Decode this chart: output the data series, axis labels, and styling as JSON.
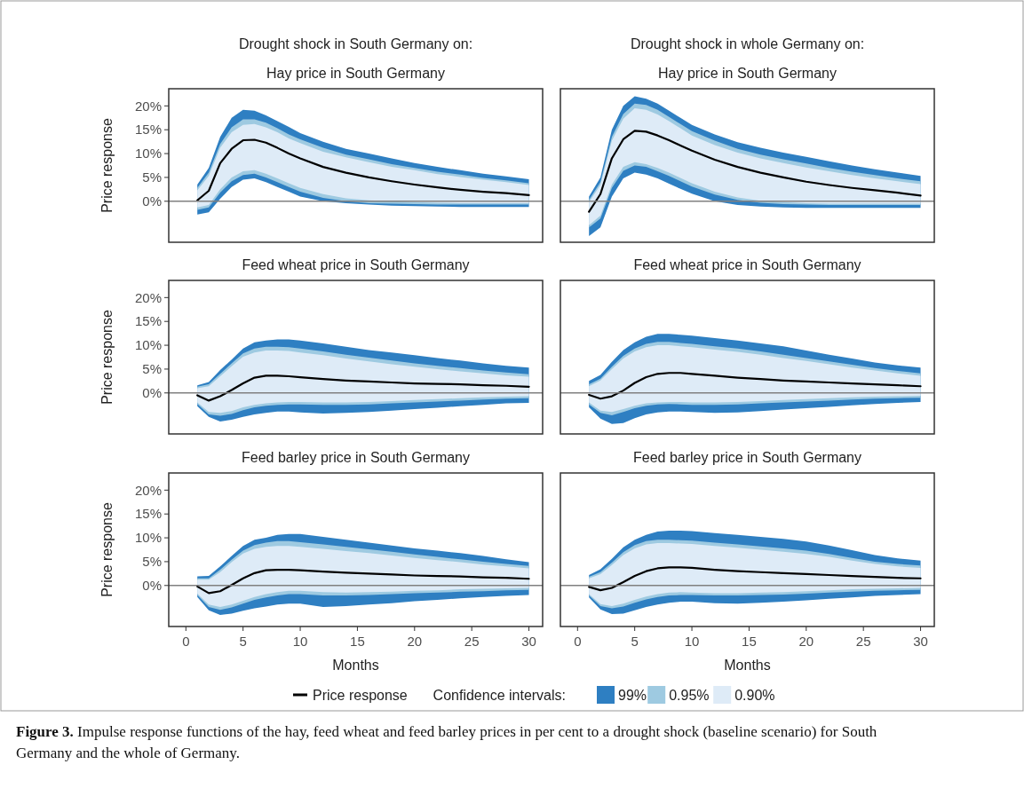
{
  "chart_data": [
    {
      "type": "line",
      "title": "Drought shock in South Germany on:",
      "subtitle": "Hay price in South Germany",
      "ylabel": "Price response",
      "xlim": [
        -1.5,
        31.2
      ],
      "ylim": [
        -8.6,
        23.6
      ],
      "yticks": [
        {
          "value": 0,
          "label": "0%"
        },
        {
          "value": 5,
          "label": "5%"
        },
        {
          "value": 10,
          "label": "10%"
        },
        {
          "value": 15,
          "label": "15%"
        },
        {
          "value": 20,
          "label": "20%"
        }
      ],
      "tick_labels": "y",
      "legend": false,
      "ref_lines": [
        {
          "axis": "y",
          "value": 0,
          "color": "#808080"
        }
      ],
      "x": [
        1,
        2,
        3,
        4,
        5,
        6,
        7,
        8,
        9,
        10,
        12,
        14,
        16,
        18,
        20,
        22,
        24,
        26,
        28,
        30
      ],
      "series": [
        {
          "color": "#2e7fc2",
          "values": [
            null,
            null,
            null,
            null,
            null,
            null,
            null,
            null,
            null,
            null,
            null,
            null,
            null,
            null,
            null,
            null,
            null,
            null,
            null,
            null
          ],
          "upper": [
            3.5,
            7,
            13.5,
            17.5,
            19.2,
            19,
            18,
            16.8,
            15.6,
            14.3,
            12.5,
            11,
            10,
            9,
            8,
            7.2,
            6.5,
            5.8,
            5.2,
            4.6
          ],
          "lower": [
            -2.8,
            -2.3,
            0.5,
            3,
            4.5,
            4.8,
            4,
            3,
            2,
            1,
            0,
            -0.4,
            -0.7,
            -0.9,
            -1,
            -1.1,
            -1.2,
            -1.2,
            -1.2,
            -1.2
          ]
        },
        {
          "color": "#9ecae1",
          "values": [
            null,
            null,
            null,
            null,
            null,
            null,
            null,
            null,
            null,
            null,
            null,
            null,
            null,
            null,
            null,
            null,
            null,
            null,
            null,
            null
          ],
          "upper": [
            2.8,
            6,
            12,
            15.5,
            17.2,
            17.2,
            16.5,
            15.3,
            14,
            13,
            11.2,
            9.8,
            8.8,
            7.8,
            7,
            6.2,
            5.6,
            4.9,
            4.4,
            3.8
          ],
          "lower": [
            -1.8,
            -1.3,
            1.8,
            4.2,
            5.5,
            5.8,
            5,
            4,
            3,
            2,
            0.7,
            0,
            -0.4,
            -0.5,
            -0.6,
            -0.7,
            -0.7,
            -0.7,
            -0.7,
            -0.7
          ]
        },
        {
          "color": "#deebf7",
          "values": [
            null,
            null,
            null,
            null,
            null,
            null,
            null,
            null,
            null,
            null,
            null,
            null,
            null,
            null,
            null,
            null,
            null,
            null,
            null,
            null
          ],
          "upper": [
            2.3,
            5.3,
            11.2,
            14.5,
            16,
            16.2,
            15.5,
            14.5,
            13.2,
            12.2,
            10.4,
            9.2,
            8.2,
            7.2,
            6.5,
            5.7,
            5.1,
            4.5,
            4,
            3.4
          ],
          "lower": [
            -1.3,
            -0.8,
            2.5,
            5,
            6.3,
            6.5,
            5.8,
            4.8,
            3.8,
            2.8,
            1.5,
            0.6,
            0.2,
            0,
            -0.2,
            -0.3,
            -0.4,
            -0.4,
            -0.4,
            -0.4
          ]
        },
        {
          "color": "#000000",
          "values": [
            0.2,
            2.2,
            8,
            11,
            12.8,
            12.9,
            12.3,
            11.2,
            10,
            9,
            7.2,
            6,
            5,
            4.2,
            3.5,
            2.9,
            2.4,
            2,
            1.7,
            1.3
          ]
        }
      ]
    },
    {
      "type": "line",
      "title": "Drought shock in whole Germany on:",
      "subtitle": "Hay price in South Germany",
      "xlim": [
        -1.5,
        31.2
      ],
      "ylim": [
        -8.6,
        23.6
      ],
      "tick_labels": false,
      "legend": false,
      "ref_lines": [
        {
          "axis": "y",
          "value": 0,
          "color": "#808080"
        }
      ],
      "x": [
        1,
        2,
        3,
        4,
        5,
        6,
        7,
        8,
        9,
        10,
        12,
        14,
        16,
        18,
        20,
        22,
        24,
        26,
        28,
        30
      ],
      "series": [
        {
          "color": "#2e7fc2",
          "values": [
            null,
            null,
            null,
            null,
            null,
            null,
            null,
            null,
            null,
            null,
            null,
            null,
            null,
            null,
            null,
            null,
            null,
            null,
            null,
            null
          ],
          "upper": [
            1,
            5,
            15,
            20,
            22,
            21.5,
            20.5,
            19,
            17.5,
            16,
            14,
            12.4,
            11.2,
            10.2,
            9.3,
            8.4,
            7.5,
            6.7,
            6,
            5.3
          ],
          "lower": [
            -7.3,
            -5.5,
            1,
            4.8,
            6,
            5.6,
            4.8,
            3.7,
            2.6,
            1.6,
            0,
            -0.8,
            -1.1,
            -1.3,
            -1.4,
            -1.4,
            -1.4,
            -1.4,
            -1.4,
            -1.4
          ]
        },
        {
          "color": "#9ecae1",
          "values": [
            null,
            null,
            null,
            null,
            null,
            null,
            null,
            null,
            null,
            null,
            null,
            null,
            null,
            null,
            null,
            null,
            null,
            null,
            null,
            null
          ],
          "upper": [
            0.3,
            4,
            13.5,
            18.3,
            20.5,
            20.2,
            19.2,
            17.7,
            16.2,
            14.7,
            12.7,
            11,
            9.8,
            8.8,
            7.9,
            7,
            6.2,
            5.5,
            4.8,
            4.2
          ],
          "lower": [
            -5.5,
            -3.6,
            2.8,
            6.4,
            7.5,
            7.2,
            6.3,
            5.3,
            4.2,
            3.1,
            1.4,
            0.3,
            -0.3,
            -0.6,
            -0.7,
            -0.8,
            -0.8,
            -0.8,
            -0.8,
            -0.8
          ]
        },
        {
          "color": "#deebf7",
          "values": [
            null,
            null,
            null,
            null,
            null,
            null,
            null,
            null,
            null,
            null,
            null,
            null,
            null,
            null,
            null,
            null,
            null,
            null,
            null,
            null
          ],
          "upper": [
            -0.2,
            3.4,
            12.7,
            17.3,
            19.5,
            19.2,
            18.2,
            16.8,
            15.3,
            13.8,
            11.8,
            10.2,
            9,
            8,
            7.1,
            6.3,
            5.5,
            4.8,
            4.2,
            3.6
          ],
          "lower": [
            -5,
            -3,
            3.5,
            7.2,
            8.2,
            7.8,
            7,
            6,
            4.9,
            3.8,
            2,
            0.8,
            0.1,
            -0.2,
            -0.4,
            -0.5,
            -0.5,
            -0.5,
            -0.5,
            -0.5
          ]
        },
        {
          "color": "#000000",
          "values": [
            -2.2,
            1.5,
            9,
            13,
            14.8,
            14.6,
            13.8,
            12.8,
            11.7,
            10.6,
            8.7,
            7.2,
            6,
            5,
            4.1,
            3.4,
            2.8,
            2.3,
            1.8,
            1.2
          ]
        }
      ]
    },
    {
      "type": "line",
      "title": "Feed wheat price in South Germany",
      "ylabel": "Price response",
      "xlim": [
        -1.5,
        31.2
      ],
      "ylim": [
        -8.6,
        23.6
      ],
      "yticks": [
        {
          "value": 0,
          "label": "0%"
        },
        {
          "value": 5,
          "label": "5%"
        },
        {
          "value": 10,
          "label": "10%"
        },
        {
          "value": 15,
          "label": "15%"
        },
        {
          "value": 20,
          "label": "20%"
        }
      ],
      "tick_labels": "y",
      "legend": false,
      "ref_lines": [
        {
          "axis": "y",
          "value": 0,
          "color": "#808080"
        }
      ],
      "x": [
        1,
        2,
        3,
        4,
        5,
        6,
        7,
        8,
        9,
        10,
        12,
        14,
        16,
        18,
        20,
        22,
        24,
        26,
        28,
        30
      ],
      "series": [
        {
          "color": "#2e7fc2",
          "values": [
            null,
            null,
            null,
            null,
            null,
            null,
            null,
            null,
            null,
            null,
            null,
            null,
            null,
            null,
            null,
            null,
            null,
            null,
            null,
            null
          ],
          "upper": [
            1.6,
            2.3,
            4.8,
            7,
            9.3,
            10.6,
            11,
            11.2,
            11.2,
            11,
            10.4,
            9.7,
            9,
            8.5,
            7.9,
            7.3,
            6.8,
            6.2,
            5.7,
            5.3
          ],
          "lower": [
            -2.8,
            -5,
            -6,
            -5.6,
            -5,
            -4.5,
            -4.2,
            -3.9,
            -3.9,
            -4.1,
            -4.3,
            -4.2,
            -4,
            -3.7,
            -3.4,
            -3.1,
            -2.8,
            -2.5,
            -2.2,
            -2.1
          ]
        },
        {
          "color": "#9ecae1",
          "values": [
            null,
            null,
            null,
            null,
            null,
            null,
            null,
            null,
            null,
            null,
            null,
            null,
            null,
            null,
            null,
            null,
            null,
            null,
            null,
            null
          ],
          "upper": [
            1.3,
            1.8,
            4,
            6.2,
            8.3,
            9.3,
            9.7,
            9.7,
            9.6,
            9.3,
            8.7,
            8,
            7.4,
            6.8,
            6.2,
            5.7,
            5.2,
            4.7,
            4.3,
            3.9
          ],
          "lower": [
            -2.3,
            -4.5,
            -4.8,
            -4.4,
            -3.6,
            -3,
            -2.7,
            -2.5,
            -2.4,
            -2.4,
            -2.5,
            -2.5,
            -2.4,
            -2.2,
            -2,
            -1.8,
            -1.6,
            -1.4,
            -1.2,
            -1.1
          ]
        },
        {
          "color": "#deebf7",
          "values": [
            null,
            null,
            null,
            null,
            null,
            null,
            null,
            null,
            null,
            null,
            null,
            null,
            null,
            null,
            null,
            null,
            null,
            null,
            null,
            null
          ],
          "upper": [
            1,
            1.4,
            3.5,
            5.6,
            7.6,
            8.5,
            8.9,
            8.9,
            8.8,
            8.5,
            7.9,
            7.2,
            6.6,
            6,
            5.5,
            5,
            4.5,
            4.1,
            3.7,
            3.4
          ],
          "lower": [
            -2,
            -4,
            -4.2,
            -3.8,
            -3,
            -2.5,
            -2.2,
            -2,
            -1.9,
            -1.9,
            -2,
            -2,
            -1.9,
            -1.7,
            -1.5,
            -1.3,
            -1.1,
            -0.9,
            -0.8,
            -0.7
          ]
        },
        {
          "color": "#000000",
          "values": [
            -0.5,
            -1.6,
            -0.7,
            0.6,
            2,
            3.2,
            3.6,
            3.6,
            3.5,
            3.3,
            2.9,
            2.6,
            2.4,
            2.2,
            2,
            1.9,
            1.8,
            1.6,
            1.5,
            1.3
          ]
        }
      ]
    },
    {
      "type": "line",
      "title": "Feed wheat price in South Germany",
      "xlim": [
        -1.5,
        31.2
      ],
      "ylim": [
        -8.6,
        23.6
      ],
      "tick_labels": false,
      "legend": false,
      "ref_lines": [
        {
          "axis": "y",
          "value": 0,
          "color": "#808080"
        }
      ],
      "x": [
        1,
        2,
        3,
        4,
        5,
        6,
        7,
        8,
        9,
        10,
        12,
        14,
        16,
        18,
        20,
        22,
        24,
        26,
        28,
        30
      ],
      "series": [
        {
          "color": "#2e7fc2",
          "values": [
            null,
            null,
            null,
            null,
            null,
            null,
            null,
            null,
            null,
            null,
            null,
            null,
            null,
            null,
            null,
            null,
            null,
            null,
            null,
            null
          ],
          "upper": [
            2.5,
            3.8,
            6.5,
            9,
            10.6,
            11.8,
            12.4,
            12.4,
            12.2,
            12,
            11.5,
            11,
            10.4,
            9.8,
            8.9,
            8,
            7.2,
            6.4,
            5.8,
            5.3
          ],
          "lower": [
            -3,
            -5.4,
            -6.5,
            -6.3,
            -5.3,
            -4.5,
            -4.1,
            -3.9,
            -3.9,
            -4,
            -4.2,
            -4.1,
            -3.8,
            -3.5,
            -3.2,
            -2.9,
            -2.6,
            -2.3,
            -2.1,
            -1.9
          ]
        },
        {
          "color": "#9ecae1",
          "values": [
            null,
            null,
            null,
            null,
            null,
            null,
            null,
            null,
            null,
            null,
            null,
            null,
            null,
            null,
            null,
            null,
            null,
            null,
            null,
            null
          ],
          "upper": [
            1.8,
            3,
            5.5,
            7.8,
            9.3,
            10.3,
            10.7,
            10.7,
            10.5,
            10.3,
            9.8,
            9.3,
            8.7,
            8,
            7.3,
            6.6,
            5.9,
            5.2,
            4.6,
            4.1
          ],
          "lower": [
            -2.4,
            -4.2,
            -4.7,
            -4,
            -3.2,
            -2.7,
            -2.4,
            -2.3,
            -2.4,
            -2.5,
            -2.5,
            -2.4,
            -2.2,
            -2,
            -1.8,
            -1.6,
            -1.4,
            -1.2,
            -1.1,
            -1
          ]
        },
        {
          "color": "#deebf7",
          "values": [
            null,
            null,
            null,
            null,
            null,
            null,
            null,
            null,
            null,
            null,
            null,
            null,
            null,
            null,
            null,
            null,
            null,
            null,
            null,
            null
          ],
          "upper": [
            1.4,
            2.6,
            5,
            7.2,
            8.7,
            9.6,
            10,
            10,
            9.8,
            9.6,
            9.1,
            8.6,
            8,
            7.3,
            6.7,
            6,
            5.3,
            4.7,
            4.1,
            3.6
          ],
          "lower": [
            -2,
            -3.7,
            -4,
            -3.4,
            -2.7,
            -2.2,
            -2,
            -1.9,
            -1.9,
            -2,
            -2,
            -1.9,
            -1.7,
            -1.5,
            -1.3,
            -1.1,
            -0.9,
            -0.8,
            -0.7,
            -0.6
          ]
        },
        {
          "color": "#000000",
          "values": [
            -0.4,
            -1.2,
            -0.7,
            0.5,
            2.1,
            3.3,
            4,
            4.2,
            4.2,
            4,
            3.6,
            3.2,
            2.9,
            2.6,
            2.4,
            2.2,
            2,
            1.8,
            1.6,
            1.4
          ]
        }
      ]
    },
    {
      "type": "line",
      "title": "Feed barley price in South Germany",
      "xlabel": "Months",
      "ylabel": "Price response",
      "xlim": [
        -1.5,
        31.2
      ],
      "ylim": [
        -8.6,
        23.6
      ],
      "xticks": [
        0,
        5,
        10,
        15,
        20,
        25,
        30
      ],
      "yticks": [
        {
          "value": 0,
          "label": "0%"
        },
        {
          "value": 5,
          "label": "5%"
        },
        {
          "value": 10,
          "label": "10%"
        },
        {
          "value": 15,
          "label": "15%"
        },
        {
          "value": 20,
          "label": "20%"
        }
      ],
      "legend": false,
      "ref_lines": [
        {
          "axis": "y",
          "value": 0,
          "color": "#808080"
        }
      ],
      "x": [
        1,
        2,
        3,
        4,
        5,
        6,
        7,
        8,
        9,
        10,
        12,
        14,
        16,
        18,
        20,
        22,
        24,
        26,
        28,
        30
      ],
      "series": [
        {
          "color": "#2e7fc2",
          "values": [
            null,
            null,
            null,
            null,
            null,
            null,
            null,
            null,
            null,
            null,
            null,
            null,
            null,
            null,
            null,
            null,
            null,
            null,
            null,
            null
          ],
          "upper": [
            1.9,
            2,
            4,
            6.2,
            8.3,
            9.6,
            10,
            10.6,
            10.8,
            10.8,
            10.2,
            9.6,
            9,
            8.4,
            7.8,
            7.3,
            6.8,
            6.2,
            5.5,
            4.9
          ],
          "lower": [
            -2.4,
            -5.2,
            -6.2,
            -5.9,
            -5.3,
            -4.8,
            -4.4,
            -4,
            -3.8,
            -3.8,
            -4.5,
            -4.3,
            -4,
            -3.7,
            -3.3,
            -3,
            -2.7,
            -2.4,
            -2.2,
            -2
          ]
        },
        {
          "color": "#9ecae1",
          "values": [
            null,
            null,
            null,
            null,
            null,
            null,
            null,
            null,
            null,
            null,
            null,
            null,
            null,
            null,
            null,
            null,
            null,
            null,
            null,
            null
          ],
          "upper": [
            1.5,
            1.5,
            3.3,
            5.4,
            7.3,
            8.5,
            9,
            9.3,
            9.3,
            9.1,
            8.6,
            8.1,
            7.6,
            7.1,
            6.5,
            6,
            5.5,
            5,
            4.5,
            4.1
          ],
          "lower": [
            -2,
            -4.5,
            -5.1,
            -4.6,
            -3.8,
            -3,
            -2.5,
            -2.1,
            -1.8,
            -1.8,
            -2.1,
            -2.1,
            -2,
            -1.8,
            -1.6,
            -1.5,
            -1.3,
            -1.2,
            -1,
            -0.9
          ]
        },
        {
          "color": "#deebf7",
          "values": [
            null,
            null,
            null,
            null,
            null,
            null,
            null,
            null,
            null,
            null,
            null,
            null,
            null,
            null,
            null,
            null,
            null,
            null,
            null,
            null
          ],
          "upper": [
            1.2,
            1.2,
            2.8,
            4.9,
            6.7,
            7.7,
            8.1,
            8.3,
            8.3,
            8.1,
            7.7,
            7.2,
            6.8,
            6.3,
            5.8,
            5.3,
            4.9,
            4.4,
            4,
            3.6
          ],
          "lower": [
            -1.7,
            -4,
            -4.5,
            -4,
            -3.2,
            -2.4,
            -1.8,
            -1.4,
            -1.1,
            -1.1,
            -1.4,
            -1.5,
            -1.4,
            -1.3,
            -1.1,
            -1,
            -0.8,
            -0.7,
            -0.6,
            -0.5
          ]
        },
        {
          "color": "#000000",
          "values": [
            -0.2,
            -1.6,
            -1.2,
            0.1,
            1.5,
            2.6,
            3.2,
            3.3,
            3.3,
            3.2,
            2.9,
            2.7,
            2.5,
            2.3,
            2.1,
            2,
            1.9,
            1.7,
            1.6,
            1.4
          ]
        }
      ]
    },
    {
      "type": "line",
      "title": "Feed barley price in South Germany",
      "xlabel": "Months",
      "legend_title": "Confidence intervals:",
      "xlim": [
        -1.5,
        31.2
      ],
      "ylim": [
        -8.6,
        23.6
      ],
      "xticks": [
        0,
        5,
        10,
        15,
        20,
        25,
        30
      ],
      "tick_labels": "x",
      "legend": "bottom",
      "ref_lines": [
        {
          "axis": "y",
          "value": 0,
          "color": "#808080"
        }
      ],
      "annotations": [
        "Figure 3. Impulse response functions of the hay, feed wheat and feed barley prices in per cent to a drought shock (baseline scenario) for South Germany and the whole of Germany."
      ],
      "x": [
        1,
        2,
        3,
        4,
        5,
        6,
        7,
        8,
        9,
        10,
        12,
        14,
        16,
        18,
        20,
        22,
        24,
        26,
        28,
        30
      ],
      "series": [
        {
          "name": "Price response",
          "color": "#000000",
          "values": [
            -0.3,
            -1,
            -0.5,
            0.7,
            2,
            3,
            3.6,
            3.8,
            3.8,
            3.7,
            3.3,
            3,
            2.8,
            2.6,
            2.4,
            2.2,
            2,
            1.8,
            1.6,
            1.5
          ]
        },
        {
          "name": "99%",
          "color": "#2e7fc2",
          "values": [
            null,
            null,
            null,
            null,
            null,
            null,
            null,
            null,
            null,
            null,
            null,
            null,
            null,
            null,
            null,
            null,
            null,
            null,
            null,
            null
          ],
          "upper": [
            2.2,
            3.4,
            5.6,
            8,
            9.6,
            10.6,
            11.3,
            11.5,
            11.5,
            11.4,
            11,
            10.6,
            10.2,
            9.8,
            9.2,
            8.4,
            7.4,
            6.4,
            5.7,
            5.2
          ],
          "lower": [
            -2.5,
            -5,
            -6,
            -5.9,
            -5.2,
            -4.5,
            -4,
            -3.6,
            -3.4,
            -3.4,
            -3.7,
            -3.8,
            -3.6,
            -3.4,
            -3.1,
            -2.8,
            -2.5,
            -2.2,
            -2,
            -1.8
          ]
        },
        {
          "name": "0.95%",
          "color": "#9ecae1",
          "values": [
            null,
            null,
            null,
            null,
            null,
            null,
            null,
            null,
            null,
            null,
            null,
            null,
            null,
            null,
            null,
            null,
            null,
            null,
            null,
            null
          ],
          "upper": [
            1.8,
            2.8,
            4.8,
            7,
            8.5,
            9.3,
            9.6,
            9.6,
            9.5,
            9.4,
            9,
            8.6,
            8.2,
            7.8,
            7.3,
            6.6,
            5.8,
            5,
            4.5,
            4.2
          ],
          "lower": [
            -2.1,
            -4.3,
            -4.8,
            -4.4,
            -3.6,
            -2.9,
            -2.4,
            -2.1,
            -2,
            -2,
            -2.1,
            -2.1,
            -2,
            -1.9,
            -1.7,
            -1.5,
            -1.3,
            -1.1,
            -1,
            -0.9
          ]
        },
        {
          "name": "0.90%",
          "color": "#deebf7",
          "values": [
            null,
            null,
            null,
            null,
            null,
            null,
            null,
            null,
            null,
            null,
            null,
            null,
            null,
            null,
            null,
            null,
            null,
            null,
            null,
            null
          ],
          "upper": [
            1.5,
            2.4,
            4.3,
            6.4,
            7.8,
            8.6,
            8.9,
            8.9,
            8.8,
            8.7,
            8.3,
            7.9,
            7.5,
            7.1,
            6.6,
            6,
            5.2,
            4.5,
            4,
            3.7
          ],
          "lower": [
            -1.8,
            -3.9,
            -4.3,
            -3.8,
            -3,
            -2.3,
            -1.8,
            -1.5,
            -1.4,
            -1.5,
            -1.6,
            -1.6,
            -1.5,
            -1.4,
            -1.2,
            -1,
            -0.8,
            -0.7,
            -0.6,
            -0.5
          ]
        }
      ]
    }
  ]
}
